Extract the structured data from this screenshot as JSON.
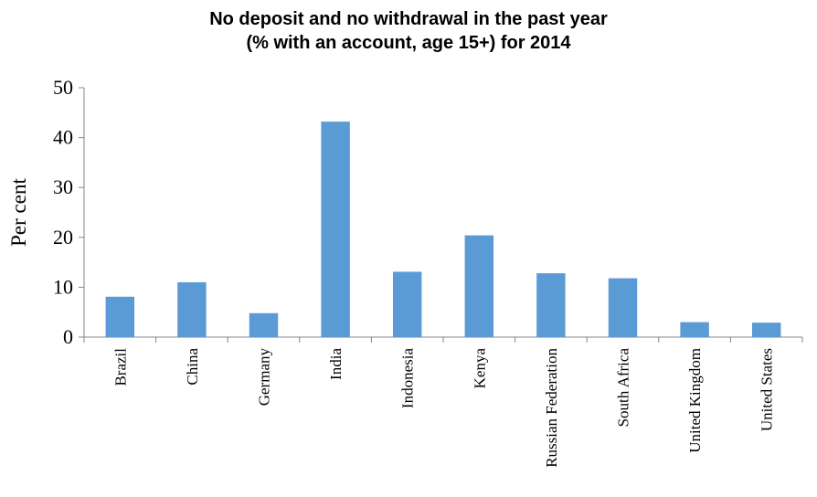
{
  "chart_data": {
    "type": "bar",
    "title_lines": [
      "No deposit and no withdrawal in the past year",
      "(% with an account, age 15+) for 2014"
    ],
    "xlabel": "",
    "ylabel": "Per cent",
    "ylim": [
      0,
      50
    ],
    "yticks": [
      "0",
      "10",
      "20",
      "30",
      "40",
      "50"
    ],
    "categories": [
      "Brazil",
      "China",
      "Germany",
      "India",
      "Indonesia",
      "Kenya",
      "Russian Federation",
      "South Africa",
      "United Kingdom",
      "United States"
    ],
    "values": [
      8.1,
      11.0,
      4.8,
      43.2,
      13.1,
      20.4,
      12.8,
      11.8,
      3.0,
      2.9
    ],
    "bar_color": "#5B9BD5",
    "grid": false,
    "legend": "none"
  }
}
